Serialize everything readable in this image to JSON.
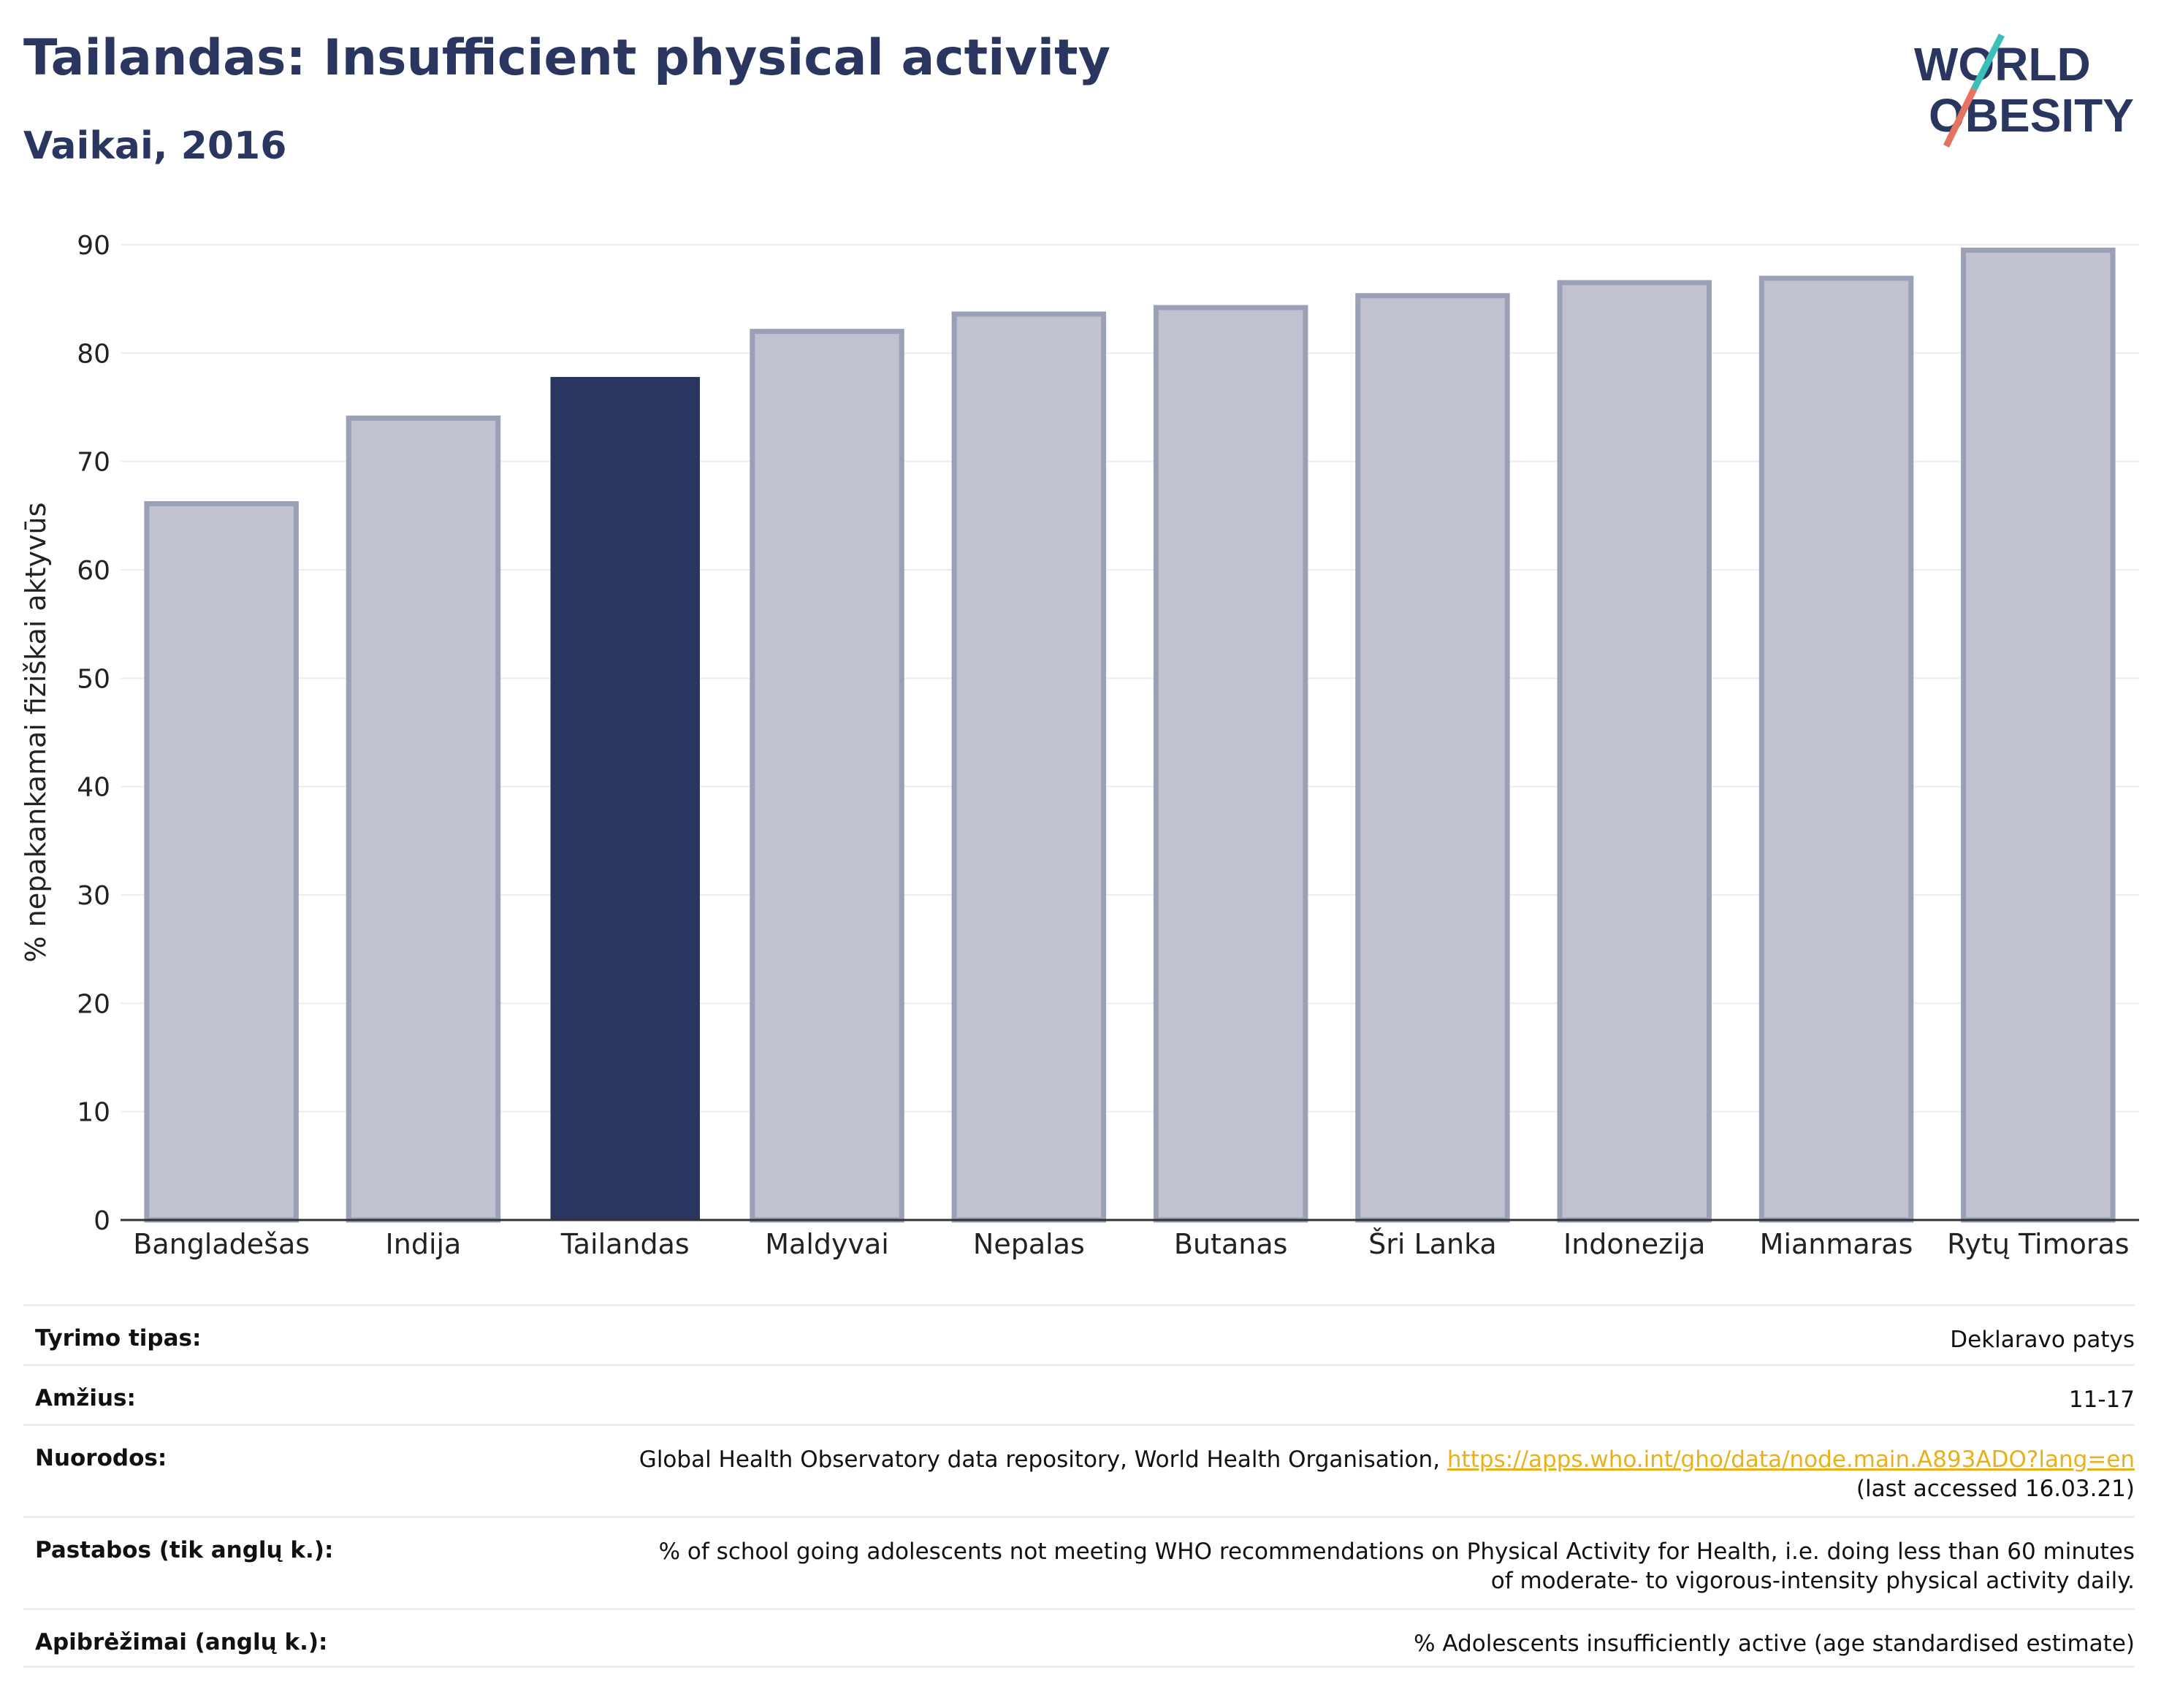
{
  "header": {
    "title": "Tailandas: Insufficient physical activity",
    "subtitle": "Vaikai, 2016"
  },
  "logo": {
    "line1": "WORLD",
    "line2": "OBESITY",
    "accent_colors": [
      "#3bbfb7",
      "#e5735f"
    ],
    "text_color": "#2a3560"
  },
  "colors": {
    "highlight_bar": "#2a3560",
    "other_bar_fill": "#c0c3cf",
    "other_bar_stroke": "#9aa0b6",
    "grid": "#ececf2",
    "link": "#e8b11a"
  },
  "chart_data": {
    "type": "bar",
    "ylabel": "% nepakankamai fiziškai aktyvūs",
    "xlabel": "",
    "ylim": [
      0,
      90
    ],
    "yticks": [
      0,
      10,
      20,
      30,
      40,
      50,
      60,
      70,
      80,
      90
    ],
    "grid": true,
    "highlight": "Tailandas",
    "categories": [
      "Bangladešas",
      "Indija",
      "Tailandas",
      "Maldyvai",
      "Nepalas",
      "Butanas",
      "Šri Lanka",
      "Indonezija",
      "Mianmaras",
      "Rytų Timoras"
    ],
    "values": [
      66.1,
      74.0,
      77.8,
      82.0,
      83.6,
      84.2,
      85.3,
      86.5,
      86.9,
      89.5
    ]
  },
  "meta": {
    "rows": [
      {
        "label": "Tyrimo tipas:",
        "value": "Deklaravo patys"
      },
      {
        "label": "Amžius:",
        "value": "11-17"
      },
      {
        "label": "Nuorodos:",
        "value_before": "Global Health Observatory data repository, World Health Organisation, ",
        "link": "https://apps.who.int/gho/data/node.main.A893ADO?lang=en",
        "value_after": "(last accessed 16.03.21)"
      },
      {
        "label": "Pastabos (tik anglų k.):",
        "value": "% of school going adolescents not meeting WHO recommendations on Physical Activity for Health, i.e. doing less than 60 minutes of moderate- to vigorous-intensity physical activity daily."
      },
      {
        "label": "Apibrėžimai (anglų k.):",
        "value": "% Adolescents insufficiently active (age standardised estimate)"
      }
    ]
  }
}
